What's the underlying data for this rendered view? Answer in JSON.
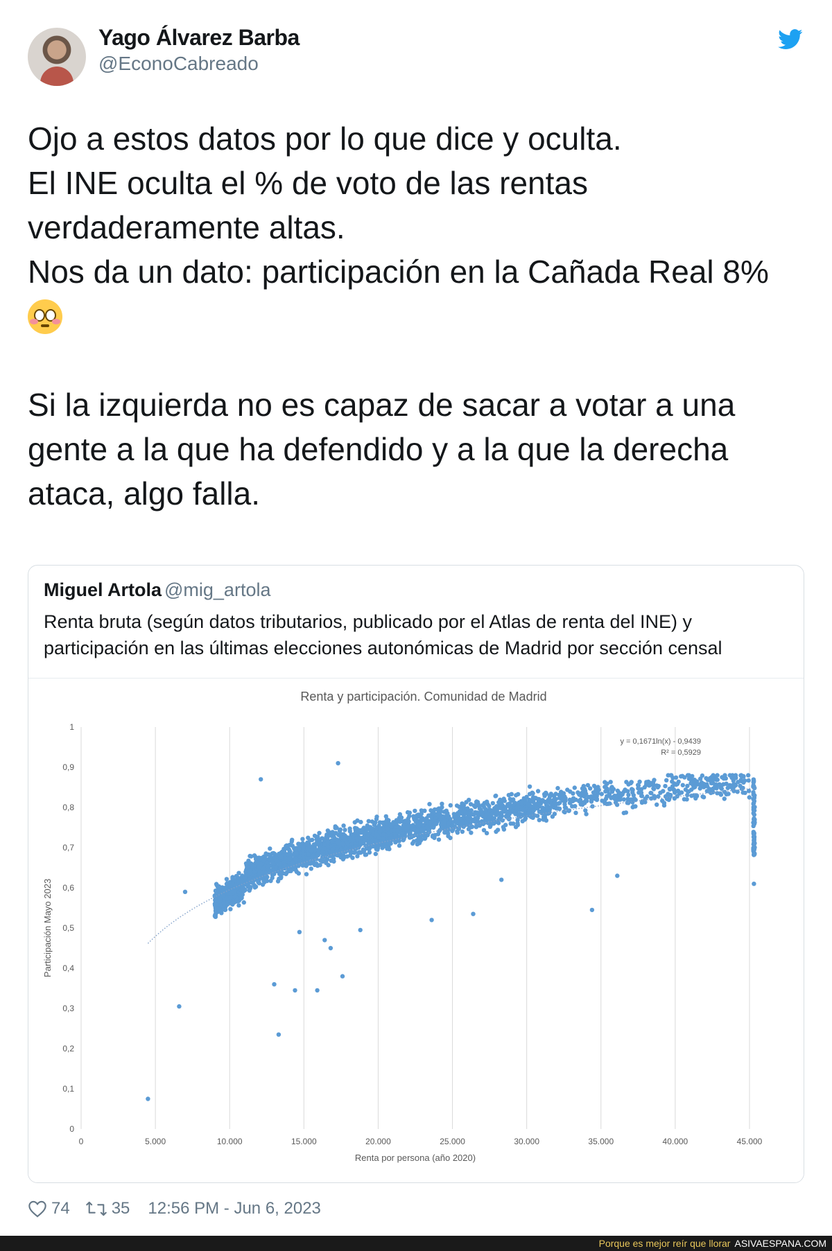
{
  "author": {
    "name": "Yago Álvarez Barba",
    "handle": "@EconoCabreado"
  },
  "tweet": {
    "lines": [
      "Ojo a estos datos por lo que dice y oculta.",
      "El INE oculta el % de voto de las rentas",
      "verdaderamente altas.",
      "Nos da un dato: participación en la Cañada Real 8%",
      "",
      "Si la izquierda no es capaz de sacar a votar a una",
      "gente a la que ha defendido y a la que la derecha",
      "ataca, algo falla."
    ],
    "emoji": "flushed-face-emoji"
  },
  "quoted": {
    "name": "Miguel Artola",
    "handle": "@mig_artola",
    "text_lines": [
      "Renta bruta (según datos tributarios, publicado por el Atlas de renta del INE) y",
      "participación en las últimas elecciones autonómicas de Madrid por sección censal"
    ]
  },
  "chart_data": {
    "type": "scatter",
    "title": "Renta y participación. Comunidad de Madrid",
    "xlabel": "Renta por persona (año 2020)",
    "ylabel": "Participación Mayo 2023",
    "xlim": [
      0,
      45000
    ],
    "ylim": [
      0,
      1
    ],
    "x_ticks": [
      "0",
      "5.000",
      "10.000",
      "15.000",
      "20.000",
      "25.000",
      "30.000",
      "35.000",
      "40.000",
      "45.000"
    ],
    "y_ticks": [
      "0",
      "0,1",
      "0,2",
      "0,3",
      "0,4",
      "0,5",
      "0,6",
      "0,7",
      "0,8",
      "0,9",
      "1"
    ],
    "grid": "vertical",
    "trendline": {
      "type": "log",
      "a": 0.1671,
      "b": -0.9439,
      "style": "dotted"
    },
    "annotation_lines": [
      "y = 0,1671ln(x) - 0,9439",
      "R² = 0,5929"
    ],
    "outliers": [
      {
        "x": 4500,
        "y": 0.075
      },
      {
        "x": 13300,
        "y": 0.235
      },
      {
        "x": 6600,
        "y": 0.305
      },
      {
        "x": 13000,
        "y": 0.36
      },
      {
        "x": 14400,
        "y": 0.345
      },
      {
        "x": 15900,
        "y": 0.345
      },
      {
        "x": 17600,
        "y": 0.38
      },
      {
        "x": 16800,
        "y": 0.45
      },
      {
        "x": 16400,
        "y": 0.47
      },
      {
        "x": 14700,
        "y": 0.49
      },
      {
        "x": 18800,
        "y": 0.495
      },
      {
        "x": 23600,
        "y": 0.52
      },
      {
        "x": 26400,
        "y": 0.535
      },
      {
        "x": 34400,
        "y": 0.545
      },
      {
        "x": 45300,
        "y": 0.61
      },
      {
        "x": 7000,
        "y": 0.59
      },
      {
        "x": 17300,
        "y": 0.91
      },
      {
        "x": 12100,
        "y": 0.87
      },
      {
        "x": 28300,
        "y": 0.62
      },
      {
        "x": 36100,
        "y": 0.63
      }
    ],
    "bulk_description_ranges": [
      {
        "x": [
          8000,
          10000
        ],
        "y": [
          0.4,
          0.62
        ]
      },
      {
        "x": [
          10000,
          20000
        ],
        "y": [
          0.5,
          0.82
        ]
      },
      {
        "x": [
          20000,
          30000
        ],
        "y": [
          0.64,
          0.84
        ]
      },
      {
        "x": [
          30000,
          45000
        ],
        "y": [
          0.68,
          0.86
        ]
      }
    ],
    "point_color": "#5b9bd5"
  },
  "stats": {
    "likes": "74",
    "retweets": "35",
    "timestamp": "12:56 PM - Jun 6, 2023"
  },
  "footer": {
    "tagline": "Porque es mejor reír que llorar",
    "brand": "ASIVAESPANA.COM"
  },
  "colors": {
    "twitter_blue": "#1da1f2",
    "muted": "#657786"
  }
}
